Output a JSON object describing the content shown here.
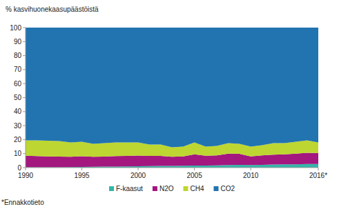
{
  "chart_data": {
    "type": "area",
    "stacked": true,
    "grid": false,
    "legend": "bottom",
    "y_label": "% kasvihuonekaasupäästöistä",
    "footnote": "*Ennakkotieto",
    "x": [
      1990,
      1991,
      1992,
      1993,
      1994,
      1995,
      1996,
      1997,
      1998,
      1999,
      2000,
      2001,
      2002,
      2003,
      2004,
      2005,
      2006,
      2007,
      2008,
      2009,
      2010,
      2011,
      2012,
      2013,
      2014,
      2015,
      2016
    ],
    "xlim": [
      1990,
      2016
    ],
    "xticks": [
      1990,
      1995,
      2000,
      2005,
      2010,
      {
        "value": 2016,
        "label": "2016*"
      }
    ],
    "ylim": [
      0,
      100
    ],
    "yticks": [
      0,
      10,
      20,
      30,
      40,
      50,
      60,
      70,
      80,
      90,
      100
    ],
    "series": [
      {
        "name": "F-kaasut",
        "color": "#35b5a8",
        "values": [
          0.2,
          0.2,
          0.2,
          0.3,
          0.4,
          0.5,
          0.6,
          0.7,
          0.8,
          0.9,
          1.0,
          1.1,
          1.2,
          1.2,
          1.3,
          1.5,
          1.5,
          1.6,
          1.8,
          2.0,
          1.8,
          2.0,
          2.2,
          2.3,
          2.4,
          2.6,
          2.6
        ]
      },
      {
        "name": "N2O",
        "color": "#a3177f",
        "values": [
          8.3,
          8.0,
          7.8,
          7.6,
          7.4,
          7.6,
          7.2,
          7.2,
          7.4,
          7.5,
          7.6,
          7.3,
          7.2,
          6.6,
          6.7,
          8.0,
          7.0,
          7.2,
          8.2,
          7.8,
          6.2,
          6.8,
          7.0,
          7.2,
          7.6,
          8.0,
          7.8
        ]
      },
      {
        "name": "CH4",
        "color": "#bdd631",
        "values": [
          11.0,
          11.3,
          11.2,
          11.1,
          10.2,
          10.4,
          9.2,
          9.6,
          9.8,
          9.6,
          9.4,
          8.1,
          8.1,
          6.7,
          7.0,
          8.5,
          6.5,
          6.7,
          7.5,
          7.2,
          7.0,
          7.2,
          8.3,
          8.0,
          8.5,
          8.9,
          7.6
        ]
      },
      {
        "name": "CO2",
        "color": "#2274b0",
        "values": [
          80.5,
          80.5,
          80.8,
          81.0,
          82.0,
          81.5,
          83.0,
          82.5,
          82.0,
          82.0,
          82.0,
          83.5,
          83.5,
          85.5,
          85.0,
          82.0,
          85.0,
          84.5,
          82.5,
          83.0,
          85.0,
          84.0,
          82.5,
          82.5,
          81.5,
          80.5,
          82.0
        ]
      }
    ]
  }
}
